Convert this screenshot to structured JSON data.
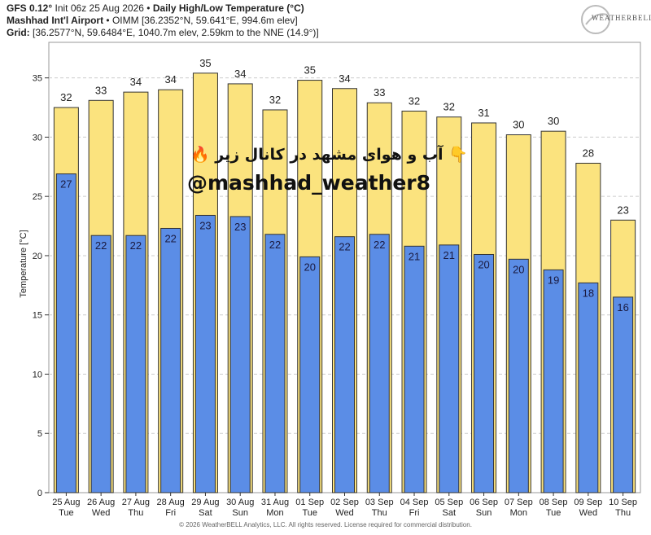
{
  "header": {
    "model": "GFS 0.12°",
    "init": "Init 06z 25 Aug 2026",
    "title": "Daily High/Low Temperature (°C)",
    "station": "Mashhad Int'l Airport",
    "station_info": "OIMM [36.2352°N, 59.641°E, 994.6m elev]",
    "grid_label": "Grid:",
    "grid_info": "[36.2577°N, 59.6484°E, 1040.7m elev, 2.59km to the NNE (14.9°)]"
  },
  "logo": {
    "text": "WEATHERBELL"
  },
  "overlay": {
    "persian_text": "🔥 آب و هوای مشهد در کانال زیر 👇",
    "handle": "@mashhad_weather8"
  },
  "footer": "© 2026 WeatherBELL Analytics, LLC. All rights reserved. License required for commercial distribution.",
  "colors": {
    "high": "#fbe37e",
    "low": "#5b8de6",
    "grid": "#cccccc"
  },
  "chart_data": {
    "type": "bar",
    "ylabel": "Temperature [°C]",
    "ylim": [
      0,
      38
    ],
    "yticks": [
      0,
      5,
      10,
      15,
      20,
      25,
      30,
      35
    ],
    "categories": [
      "25 Aug",
      "26 Aug",
      "27 Aug",
      "28 Aug",
      "29 Aug",
      "30 Aug",
      "31 Aug",
      "01 Sep",
      "02 Sep",
      "03 Sep",
      "04 Sep",
      "05 Sep",
      "06 Sep",
      "07 Sep",
      "08 Sep",
      "09 Sep",
      "10 Sep"
    ],
    "days": [
      "Tue",
      "Wed",
      "Thu",
      "Fri",
      "Sat",
      "Sun",
      "Mon",
      "Tue",
      "Wed",
      "Thu",
      "Fri",
      "Sat",
      "Sun",
      "Mon",
      "Tue",
      "Wed",
      "Thu"
    ],
    "series": [
      {
        "name": "High",
        "values": [
          32.5,
          33.1,
          33.8,
          34.0,
          35.4,
          34.5,
          32.3,
          34.8,
          34.1,
          32.9,
          32.2,
          31.7,
          31.2,
          30.2,
          30.5,
          27.8,
          23.0
        ],
        "labels": [
          "32",
          "33",
          "34",
          "34",
          "35",
          "34",
          "32",
          "35",
          "34",
          "33",
          "32",
          "32",
          "31",
          "30",
          "30",
          "28",
          "23"
        ]
      },
      {
        "name": "Low",
        "values": [
          26.9,
          21.7,
          21.7,
          22.3,
          23.4,
          23.3,
          21.8,
          19.9,
          21.6,
          21.8,
          20.8,
          20.9,
          20.1,
          19.7,
          18.8,
          17.7,
          16.5
        ],
        "labels": [
          "27",
          "22",
          "22",
          "22",
          "23",
          "23",
          "22",
          "20",
          "22",
          "22",
          "21",
          "21",
          "20",
          "20",
          "19",
          "18",
          "16"
        ]
      }
    ]
  }
}
